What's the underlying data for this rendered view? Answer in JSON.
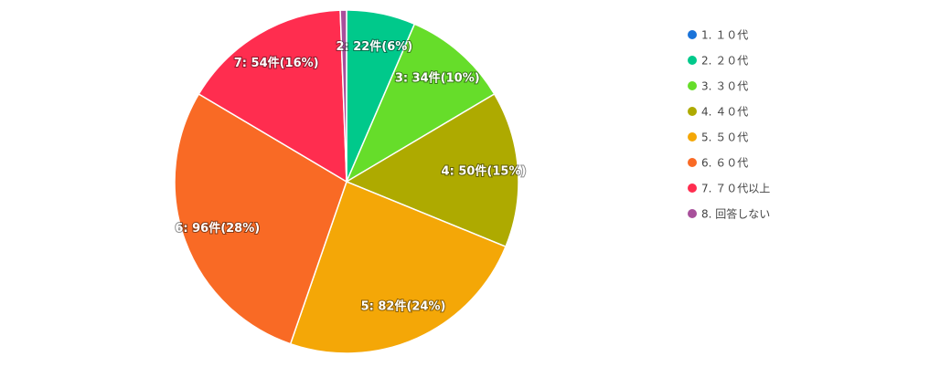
{
  "chart_data": {
    "type": "pie",
    "categories": [
      "1. １０代",
      "2. ２０代",
      "3. ３０代",
      "4. ４０代",
      "5. ５０代",
      "6. ６０代",
      "7. ７０代以上",
      "8. 回答しない"
    ],
    "values": [
      0,
      22,
      34,
      50,
      82,
      96,
      54,
      2
    ],
    "value_labels": [
      null,
      "2: 22件(6%)",
      "3: 34件(10%)",
      "4: 50件(15%)",
      "5: 82件(24%)",
      "6: 96件(28%)",
      "7: 54件(16%)",
      null
    ],
    "colors": [
      "#1a73d9",
      "#00c98b",
      "#66dd2a",
      "#aeaa00",
      "#f4a707",
      "#f96a25",
      "#ff2d4f",
      "#a8509b"
    ],
    "legend": "right"
  }
}
